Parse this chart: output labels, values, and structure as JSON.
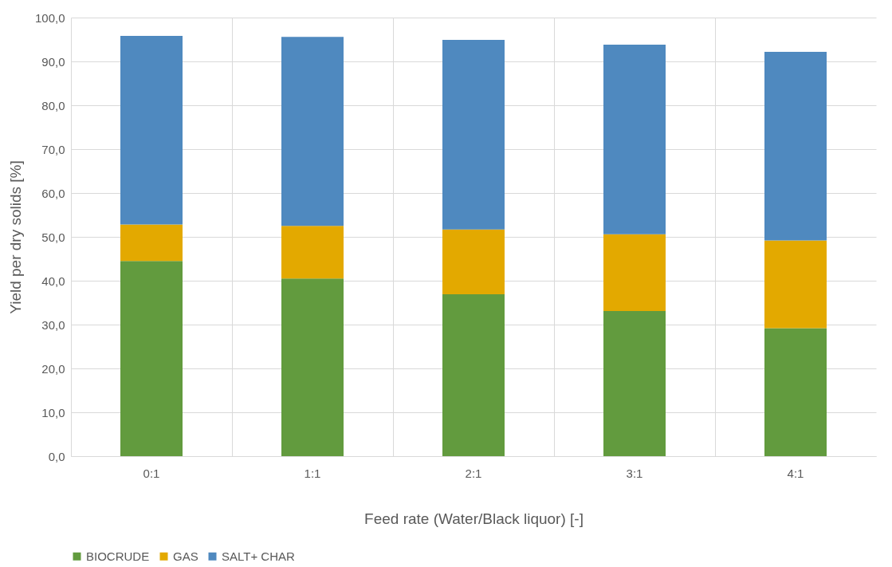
{
  "chart_data": {
    "type": "bar",
    "stacked": true,
    "xlabel": "Feed rate (Water/Black liquor) [-]",
    "ylabel": "Yield per dry solids [%]",
    "categories": [
      "0:1",
      "1:1",
      "2:1",
      "3:1",
      "4:1"
    ],
    "series": [
      {
        "name": "BIOCRUDE",
        "color": "#629b3e",
        "values": [
          44.5,
          40.5,
          36.9,
          33.1,
          29.2
        ]
      },
      {
        "name": "GAS",
        "color": "#e3a900",
        "values": [
          8.3,
          12.0,
          14.8,
          17.5,
          20.0
        ]
      },
      {
        "name": "SALT+ CHAR",
        "color": "#4f89bf",
        "values": [
          43.0,
          43.1,
          43.2,
          43.2,
          43.0
        ]
      }
    ],
    "ylim": [
      0,
      100
    ],
    "yticks": [
      {
        "value": 0,
        "label": "0,0"
      },
      {
        "value": 10,
        "label": "10,0"
      },
      {
        "value": 20,
        "label": "20,0"
      },
      {
        "value": 30,
        "label": "30,0"
      },
      {
        "value": 40,
        "label": "40,0"
      },
      {
        "value": 50,
        "label": "50,0"
      },
      {
        "value": 60,
        "label": "60,0"
      },
      {
        "value": 70,
        "label": "70,0"
      },
      {
        "value": 80,
        "label": "80,0"
      },
      {
        "value": 90,
        "label": "90,0"
      },
      {
        "value": 100,
        "label": "100,0"
      }
    ],
    "grid": true,
    "legend": "bottom"
  }
}
